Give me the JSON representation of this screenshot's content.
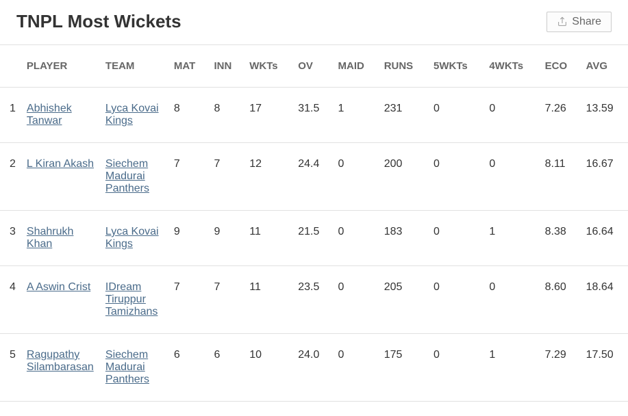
{
  "header": {
    "title": "TNPL Most Wickets",
    "share_label": "Share"
  },
  "table": {
    "columns": [
      "",
      "PLAYER",
      "TEAM",
      "MAT",
      "INN",
      "WKTs",
      "OV",
      "MAID",
      "RUNS",
      "5WKTs",
      "4WKTs",
      "ECO",
      "AVG"
    ],
    "rows": [
      {
        "rank": "1",
        "player": "Abhishek Tanwar",
        "team": "Lyca Kovai Kings",
        "mat": "8",
        "inn": "8",
        "wkts": "17",
        "ov": "31.5",
        "maid": "1",
        "runs": "231",
        "w5": "0",
        "w4": "0",
        "eco": "7.26",
        "avg": "13.59"
      },
      {
        "rank": "2",
        "player": "L Kiran Akash",
        "team": "Siechem Madurai Panthers",
        "mat": "7",
        "inn": "7",
        "wkts": "12",
        "ov": "24.4",
        "maid": "0",
        "runs": "200",
        "w5": "0",
        "w4": "0",
        "eco": "8.11",
        "avg": "16.67"
      },
      {
        "rank": "3",
        "player": "Shahrukh Khan",
        "team": "Lyca Kovai Kings",
        "mat": "9",
        "inn": "9",
        "wkts": "11",
        "ov": "21.5",
        "maid": "0",
        "runs": "183",
        "w5": "0",
        "w4": "1",
        "eco": "8.38",
        "avg": "16.64"
      },
      {
        "rank": "4",
        "player": "A Aswin Crist",
        "team": "IDream Tiruppur Tamizhans",
        "mat": "7",
        "inn": "7",
        "wkts": "11",
        "ov": "23.5",
        "maid": "0",
        "runs": "205",
        "w5": "0",
        "w4": "0",
        "eco": "8.60",
        "avg": "18.64"
      },
      {
        "rank": "5",
        "player": "Ragupathy Silambarasan",
        "team": "Siechem Madurai Panthers",
        "mat": "6",
        "inn": "6",
        "wkts": "10",
        "ov": "24.0",
        "maid": "0",
        "runs": "175",
        "w5": "0",
        "w4": "1",
        "eco": "7.29",
        "avg": "17.50"
      }
    ]
  },
  "styling": {
    "link_color": "#4a6b8a",
    "header_text_color": "#666666",
    "body_text_color": "#333333",
    "border_color": "#e1e1e1",
    "background_color": "#ffffff",
    "title_fontsize": 26,
    "header_fontsize": 15,
    "cell_fontsize": 16
  }
}
